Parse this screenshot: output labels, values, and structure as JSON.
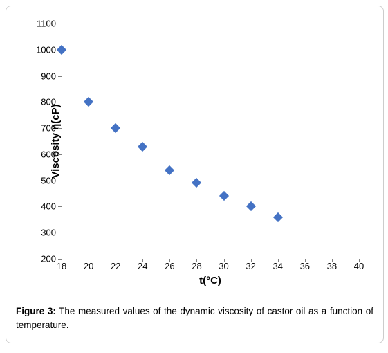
{
  "chart": {
    "type": "scatter",
    "xlabel": "t(°C)",
    "ylabel": "Viscosity η(cP)",
    "label_fontsize": 15,
    "tick_fontsize": 13,
    "xlim": [
      18,
      40
    ],
    "ylim": [
      200,
      1100
    ],
    "xtick_step": 2,
    "ytick_step": 100,
    "x_ticks": [
      18,
      20,
      22,
      24,
      26,
      28,
      30,
      32,
      34,
      36,
      38,
      40
    ],
    "y_ticks": [
      200,
      300,
      400,
      500,
      600,
      700,
      800,
      900,
      1000,
      1100
    ],
    "background_color": "#ffffff",
    "border_color": "#808080",
    "marker_style": "diamond",
    "marker_color": "#4472c4",
    "marker_size": 10,
    "data_x": [
      18,
      20,
      22,
      24,
      26,
      28,
      30,
      32,
      34
    ],
    "data_y": [
      1000,
      800,
      700,
      630,
      540,
      490,
      440,
      400,
      360
    ]
  },
  "caption": {
    "label": "Figure 3:",
    "text": " The measured values of the dynamic viscosity of castor oil as a function of temperature."
  }
}
